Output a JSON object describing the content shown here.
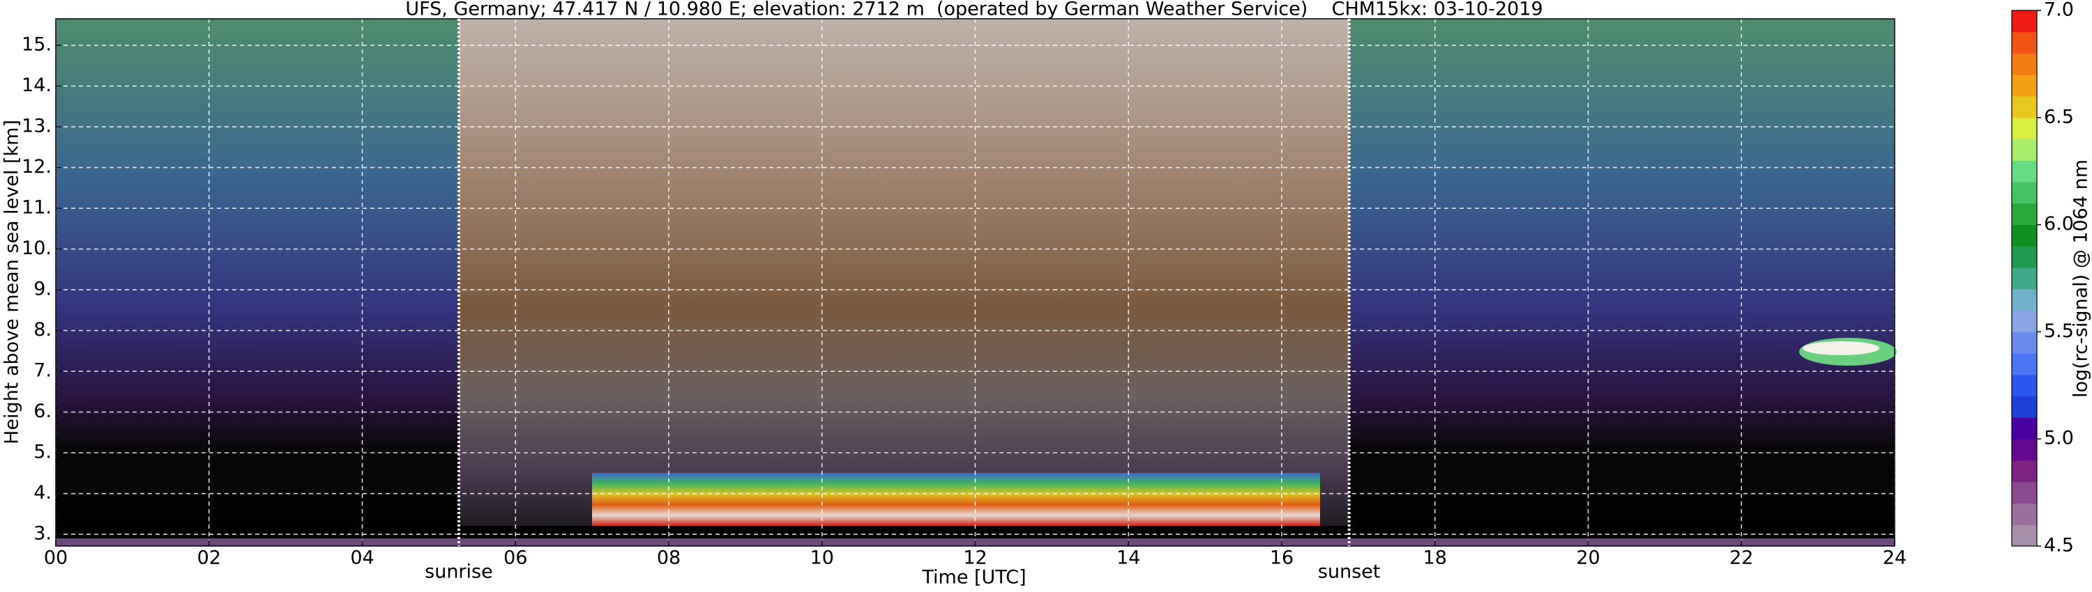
{
  "chart_data": {
    "type": "heatmap",
    "title": "UFS, Germany; 47.417 N / 10.980 E; elevation: 2712 m  (operated by German Weather Service)    CHM15kx: 03-10-2019",
    "x_label": "Time [UTC]",
    "y_label": "Height above mean sea level [km]",
    "xlim": [
      0,
      24
    ],
    "xticks": [
      {
        "value": 0,
        "label": "00"
      },
      {
        "value": 2,
        "label": "02"
      },
      {
        "value": 4,
        "label": "04"
      },
      {
        "value": 6,
        "label": "06"
      },
      {
        "value": 8,
        "label": "08"
      },
      10,
      12,
      14,
      16,
      18,
      20,
      22,
      24
    ],
    "ylim": [
      2.712,
      15.65
    ],
    "yticks": [
      {
        "value": 3,
        "label": "3."
      },
      {
        "value": 4,
        "label": "4."
      },
      {
        "value": 5,
        "label": "5."
      },
      {
        "value": 6,
        "label": "6."
      },
      {
        "value": 7,
        "label": "7."
      },
      {
        "value": 8,
        "label": "8."
      },
      {
        "value": 9,
        "label": "9."
      },
      {
        "value": 10,
        "label": "10."
      },
      {
        "value": 11,
        "label": "11."
      },
      {
        "value": 12,
        "label": "12."
      },
      {
        "value": 13,
        "label": "13."
      },
      {
        "value": 14,
        "label": "14."
      },
      {
        "value": 15,
        "label": "15."
      }
    ],
    "grid": true,
    "annotations": [
      {
        "text": "sunrise",
        "x": 5.26
      },
      {
        "text": "sunset",
        "x": 16.88
      }
    ],
    "colorbar": {
      "label": "log(rc-signal) @ 1064 nm",
      "lim": [
        4.5,
        7.0
      ],
      "ticks": [
        4.5,
        {
          "value": 5,
          "label": "5.0"
        },
        5.5,
        {
          "value": 6,
          "label": "6.0"
        },
        6.5,
        {
          "value": 7,
          "label": "7.0"
        }
      ],
      "colors": [
        "#a58fa8",
        "#9a6f9c",
        "#8c4a8e",
        "#7e2280",
        "#650890",
        "#4a00a0",
        "#1e3ed8",
        "#2a58ee",
        "#4a74f2",
        "#6a8aee",
        "#88a4e4",
        "#70b0c8",
        "#40a888",
        "#209a50",
        "#109020",
        "#2aa83a",
        "#44c464",
        "#68dc84",
        "#a8ec6a",
        "#d8ee40",
        "#e8c820",
        "#f4a014",
        "#f47c14",
        "#f25416",
        "#ee1c14"
      ]
    }
  }
}
